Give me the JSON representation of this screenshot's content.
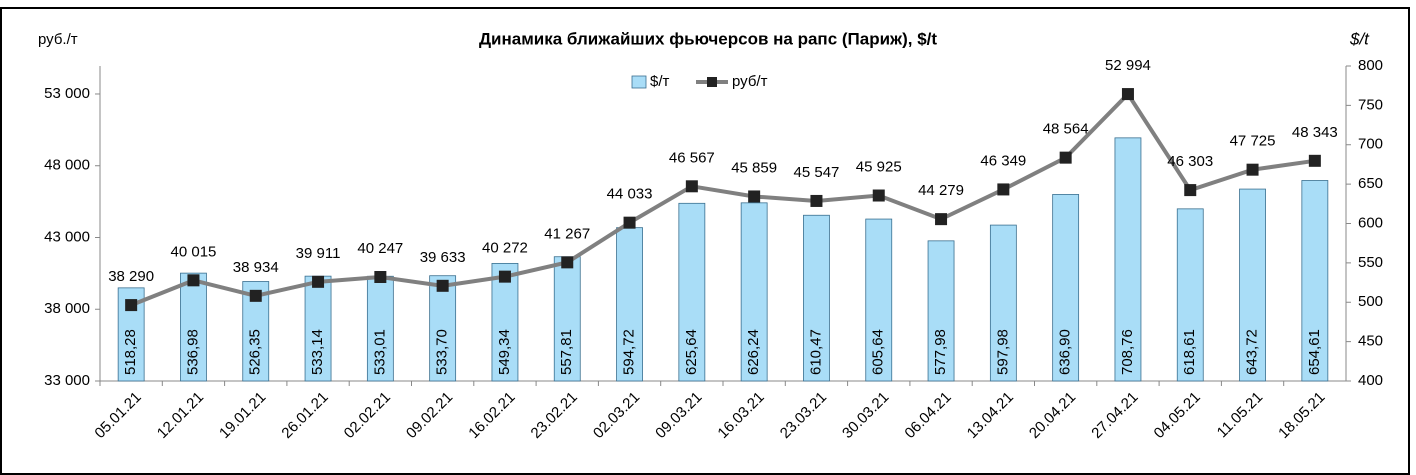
{
  "chart_data": {
    "type": "bar-line",
    "title": "Динамика ближайших фьючерсов на рапс (Париж), $/t",
    "y_label": "руб./т",
    "y2_label": "$/t",
    "categories": [
      "05.01.21",
      "12.01.21",
      "19.01.21",
      "26.01.21",
      "02.02.21",
      "09.02.21",
      "16.02.21",
      "23.02.21",
      "02.03.21",
      "09.03.21",
      "16.03.21",
      "23.03.21",
      "30.03.21",
      "06.04.21",
      "13.04.21",
      "20.04.21",
      "27.04.21",
      "04.05.21",
      "11.05.21",
      "18.05.21"
    ],
    "series": [
      {
        "name": "$/т",
        "type": "bar",
        "axis": "y2",
        "color": "#a9ddf7",
        "values": [
          518.28,
          536.98,
          526.35,
          533.14,
          533.01,
          533.7,
          549.34,
          557.81,
          594.72,
          625.64,
          626.24,
          610.47,
          605.64,
          577.98,
          597.98,
          636.9,
          708.76,
          618.61,
          643.72,
          654.61
        ],
        "value_labels": [
          "518,28",
          "536,98",
          "526,35",
          "533,14",
          "533,01",
          "533,70",
          "549,34",
          "557,81",
          "594,72",
          "625,64",
          "626,24",
          "610,47",
          "605,64",
          "577,98",
          "597,98",
          "636,90",
          "708,76",
          "618,61",
          "643,72",
          "654,61"
        ]
      },
      {
        "name": "руб/т",
        "type": "line",
        "axis": "y",
        "color": "#808080",
        "values": [
          38290,
          40015,
          38934,
          39911,
          40247,
          39633,
          40272,
          41267,
          44033,
          46567,
          45859,
          45547,
          45925,
          44279,
          46349,
          48564,
          52994,
          46303,
          47725,
          48343
        ],
        "value_labels": [
          "38 290",
          "40 015",
          "38 934",
          "39 911",
          "40 247",
          "39 633",
          "40 272",
          "41 267",
          "44 033",
          "46 567",
          "45 859",
          "45 547",
          "45 925",
          "44 279",
          "46 349",
          "48 564",
          "52 994",
          "46 303",
          "47 725",
          "48 343"
        ]
      }
    ],
    "ylim": [
      33000,
      54950
    ],
    "yticks": [
      {
        "value": 33000,
        "label": "33 000"
      },
      {
        "value": 38000,
        "label": "38 000"
      },
      {
        "value": 43000,
        "label": "43 000"
      },
      {
        "value": 48000,
        "label": "48 000"
      },
      {
        "value": 53000,
        "label": "53 000"
      }
    ],
    "y2lim": [
      400,
      800
    ],
    "y2ticks": [
      400,
      450,
      500,
      550,
      600,
      650,
      700,
      750,
      800
    ],
    "legend": "top"
  }
}
